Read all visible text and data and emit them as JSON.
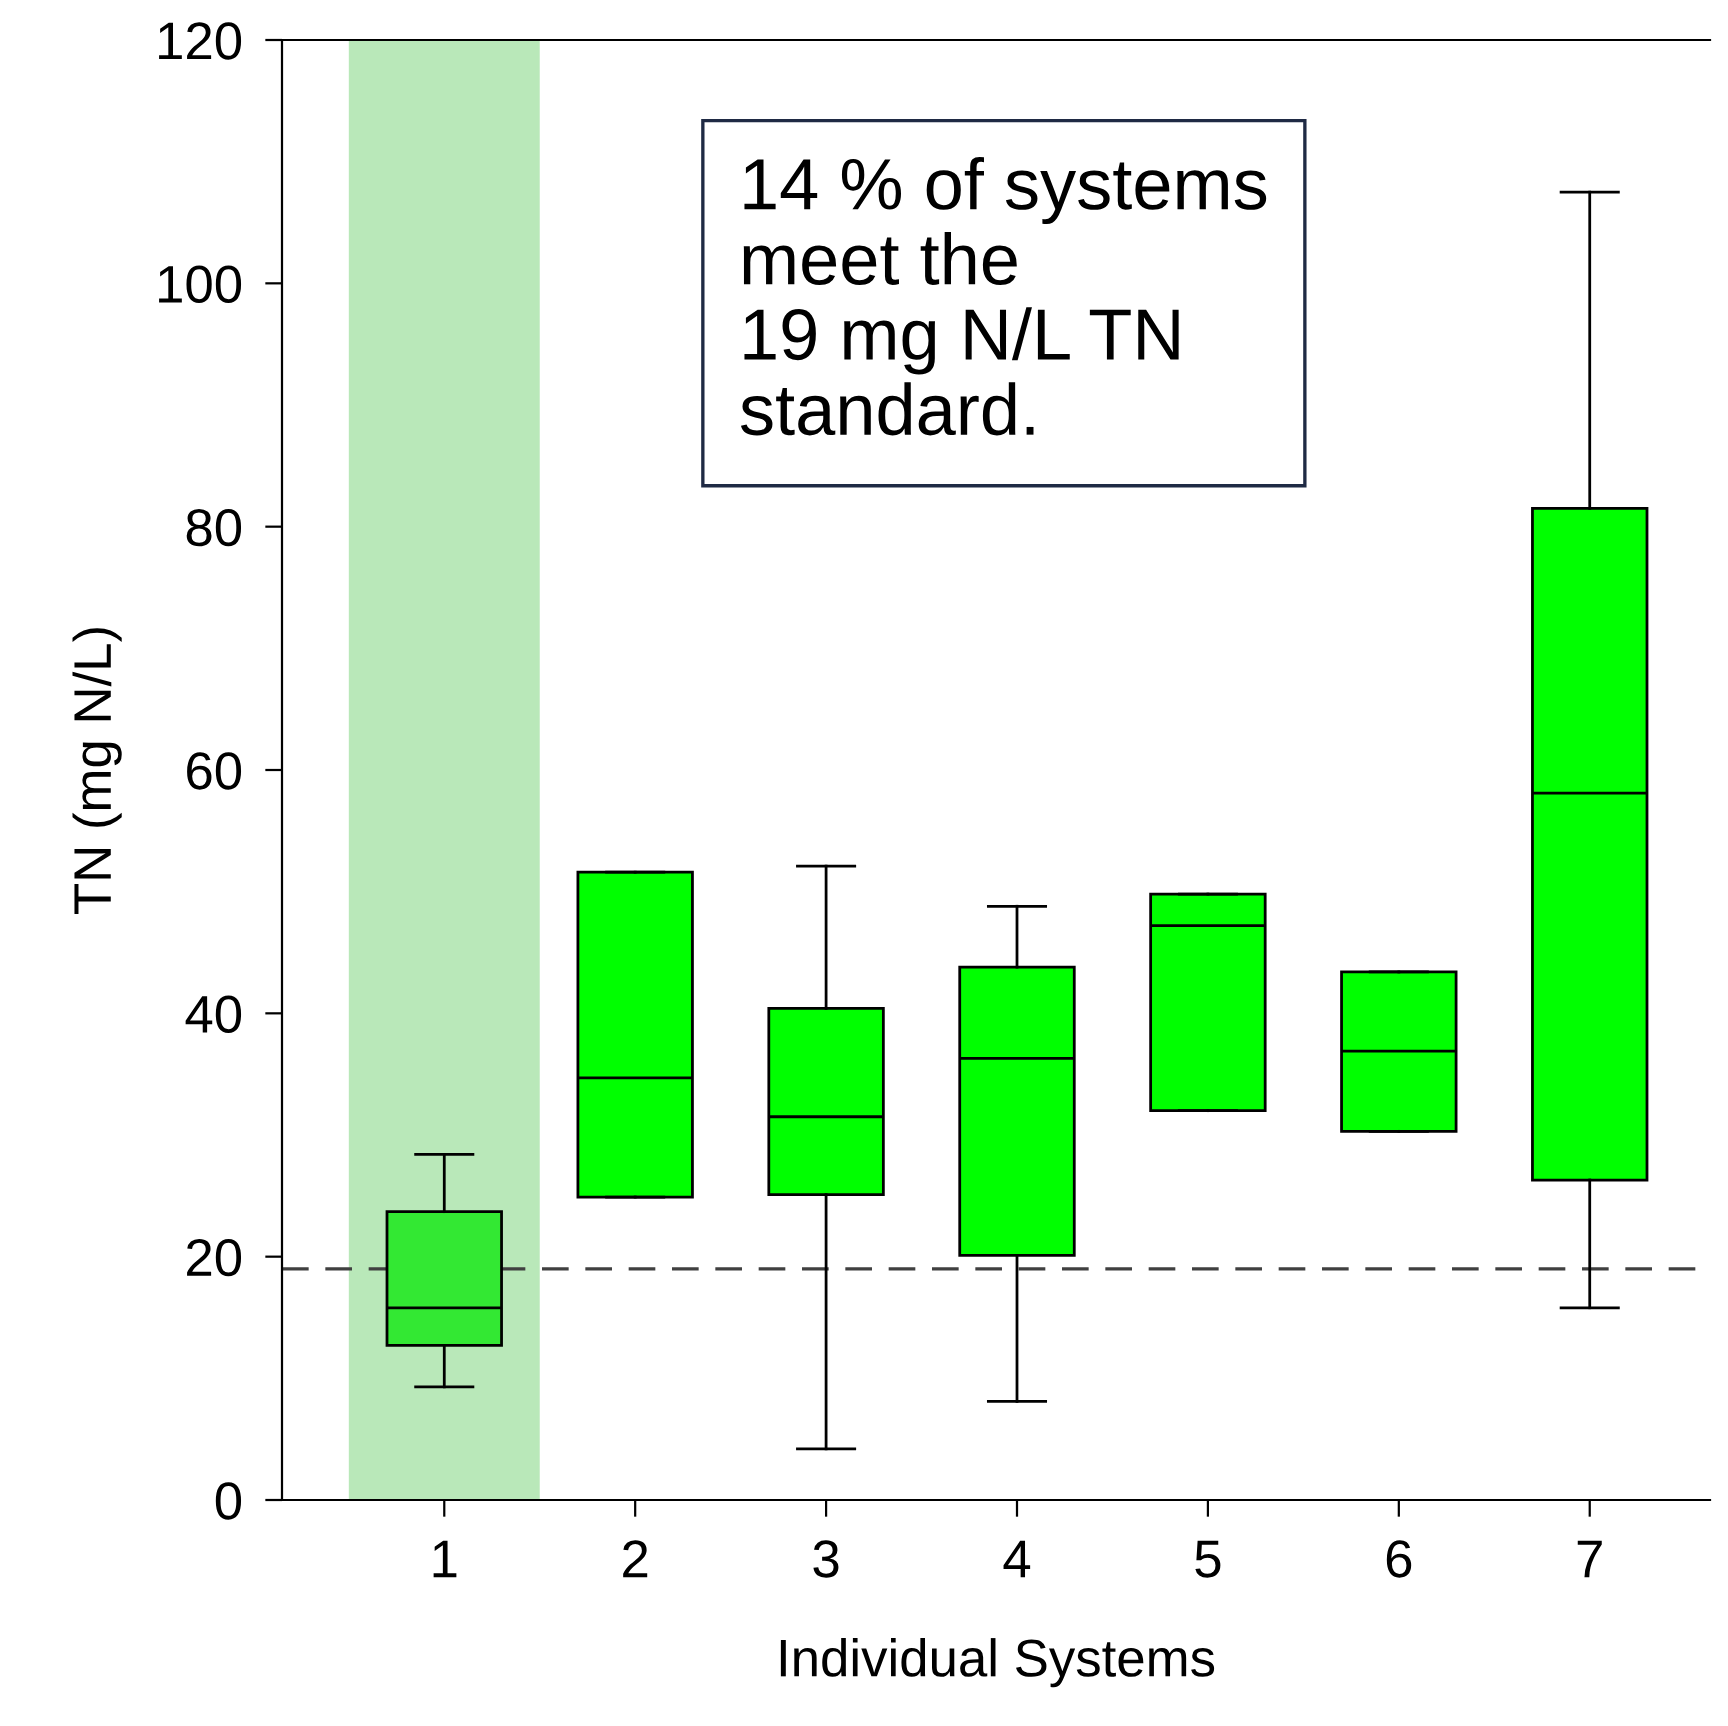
{
  "chart_data": {
    "type": "box",
    "xlabel": "Individual Systems",
    "ylabel": "TN (mg N/L)",
    "categories": [
      "1",
      "2",
      "3",
      "4",
      "5",
      "6",
      "7"
    ],
    "colors": [
      "#33e833",
      "#00ff00",
      "#00ff00",
      "#00ff00",
      "#00ff00",
      "#00ff00",
      "#00ff00"
    ],
    "boxes": [
      {
        "low": 9.3,
        "q1": 12.7,
        "median": 15.8,
        "q3": 23.7,
        "high": 28.4
      },
      {
        "low": 24.9,
        "q1": 24.9,
        "median": 34.7,
        "q3": 51.6,
        "high": 51.6
      },
      {
        "low": 4.2,
        "q1": 25.1,
        "median": 31.5,
        "q3": 40.4,
        "high": 52.1
      },
      {
        "low": 8.1,
        "q1": 20.1,
        "median": 36.3,
        "q3": 43.8,
        "high": 48.8
      },
      {
        "low": 32.0,
        "q1": 32.0,
        "median": 47.2,
        "q3": 49.8,
        "high": 49.8
      },
      {
        "low": 30.3,
        "q1": 30.3,
        "median": 36.9,
        "q3": 43.4,
        "high": 43.4
      },
      {
        "low": 15.8,
        "q1": 26.3,
        "median": 58.1,
        "q3": 81.5,
        "high": 107.5
      }
    ],
    "ylim": [
      0,
      120
    ],
    "yticks": [
      0,
      20,
      40,
      60,
      80,
      100,
      120
    ],
    "ref_lines": [
      {
        "axis": "y",
        "value": 19,
        "color": "#404040",
        "line_style": "dashed"
      }
    ],
    "bands": [
      {
        "axis": "x",
        "from": "1",
        "to": "1",
        "color": "#b9e8b9"
      }
    ],
    "annotations": [
      "14 % of systems\nmeet the\n19 mg N/L TN\nstandard."
    ],
    "grid": false
  }
}
